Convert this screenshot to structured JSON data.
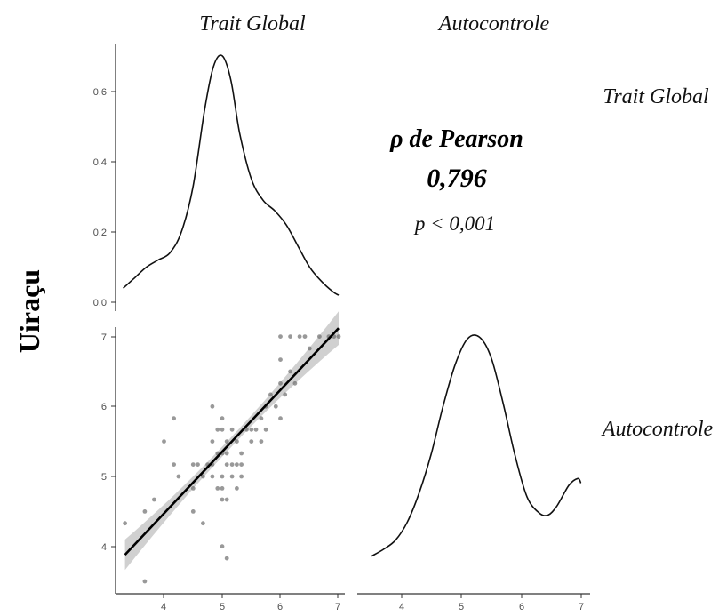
{
  "chart_data": {
    "type": "scatter",
    "variables": [
      "Trait Global",
      "Autocontrole"
    ],
    "group_label": "Uiraçu",
    "correlation": {
      "label": "ρ de Pearson",
      "value": "0,796",
      "p_text": "p < 0,001"
    },
    "density_trait": {
      "type": "line",
      "ylim": [
        0,
        0.75
      ],
      "y_ticks": [
        "0.0",
        "0.2",
        "0.4",
        "0.6"
      ],
      "x": [
        3.3,
        3.5,
        3.7,
        3.9,
        4.1,
        4.3,
        4.5,
        4.7,
        4.85,
        5.0,
        5.15,
        5.3,
        5.5,
        5.7,
        5.9,
        6.1,
        6.3,
        6.5,
        6.7,
        6.9,
        7.0
      ],
      "y": [
        0.04,
        0.07,
        0.1,
        0.12,
        0.14,
        0.2,
        0.33,
        0.55,
        0.67,
        0.7,
        0.63,
        0.48,
        0.35,
        0.29,
        0.26,
        0.22,
        0.16,
        0.1,
        0.06,
        0.03,
        0.02
      ]
    },
    "scatter": {
      "x_ticks": [
        "4",
        "5",
        "6",
        "7"
      ],
      "y_ticks": [
        "4",
        "5",
        "6",
        "7"
      ],
      "xlim": [
        3.3,
        7.0
      ],
      "ylim": [
        3.3,
        7.1
      ],
      "points": [
        [
          3.33,
          4.33
        ],
        [
          3.67,
          3.5
        ],
        [
          3.67,
          4.5
        ],
        [
          3.83,
          4.67
        ],
        [
          4.0,
          5.5
        ],
        [
          4.17,
          5.83
        ],
        [
          4.17,
          5.17
        ],
        [
          4.25,
          5.0
        ],
        [
          4.5,
          5.17
        ],
        [
          4.5,
          4.5
        ],
        [
          4.5,
          4.83
        ],
        [
          4.58,
          5.17
        ],
        [
          4.67,
          5.0
        ],
        [
          4.67,
          4.33
        ],
        [
          4.75,
          5.17
        ],
        [
          4.83,
          5.0
        ],
        [
          4.83,
          5.5
        ],
        [
          4.83,
          5.17
        ],
        [
          4.83,
          6.0
        ],
        [
          4.92,
          5.33
        ],
        [
          4.92,
          4.83
        ],
        [
          4.92,
          5.67
        ],
        [
          5.0,
          5.33
        ],
        [
          5.0,
          5.0
        ],
        [
          5.0,
          4.67
        ],
        [
          5.0,
          4.83
        ],
        [
          5.0,
          5.83
        ],
        [
          5.0,
          4.0
        ],
        [
          5.0,
          5.67
        ],
        [
          5.08,
          5.33
        ],
        [
          5.08,
          4.67
        ],
        [
          5.08,
          3.83
        ],
        [
          5.08,
          5.17
        ],
        [
          5.08,
          5.5
        ],
        [
          5.17,
          5.0
        ],
        [
          5.17,
          5.17
        ],
        [
          5.17,
          5.67
        ],
        [
          5.25,
          5.17
        ],
        [
          5.25,
          5.5
        ],
        [
          5.25,
          4.83
        ],
        [
          5.33,
          5.17
        ],
        [
          5.33,
          5.33
        ],
        [
          5.33,
          5.0
        ],
        [
          5.42,
          5.67
        ],
        [
          5.5,
          5.67
        ],
        [
          5.5,
          5.5
        ],
        [
          5.58,
          5.67
        ],
        [
          5.67,
          5.5
        ],
        [
          5.67,
          5.83
        ],
        [
          5.75,
          5.67
        ],
        [
          5.75,
          6.0
        ],
        [
          5.83,
          6.17
        ],
        [
          5.92,
          6.0
        ],
        [
          6.0,
          5.83
        ],
        [
          6.0,
          6.33
        ],
        [
          6.0,
          6.67
        ],
        [
          6.0,
          7.0
        ],
        [
          6.08,
          6.17
        ],
        [
          6.17,
          6.5
        ],
        [
          6.17,
          7.0
        ],
        [
          6.25,
          6.33
        ],
        [
          6.33,
          7.0
        ],
        [
          6.42,
          7.0
        ],
        [
          6.5,
          6.83
        ],
        [
          6.67,
          7.0
        ],
        [
          6.83,
          7.0
        ],
        [
          7.0,
          7.0
        ],
        [
          6.92,
          7.0
        ]
      ],
      "fit": {
        "x": [
          3.33,
          7.0
        ],
        "y": [
          3.88,
          7.12
        ]
      }
    },
    "density_auto": {
      "type": "line",
      "x": [
        3.5,
        3.7,
        3.9,
        4.1,
        4.3,
        4.5,
        4.7,
        4.9,
        5.1,
        5.3,
        5.5,
        5.7,
        5.9,
        6.1,
        6.3,
        6.45,
        6.6,
        6.8,
        6.95,
        7.0
      ],
      "y": [
        0.04,
        0.07,
        0.11,
        0.19,
        0.32,
        0.49,
        0.7,
        0.88,
        0.99,
        1.0,
        0.91,
        0.71,
        0.48,
        0.3,
        0.23,
        0.22,
        0.26,
        0.35,
        0.38,
        0.36
      ]
    }
  }
}
